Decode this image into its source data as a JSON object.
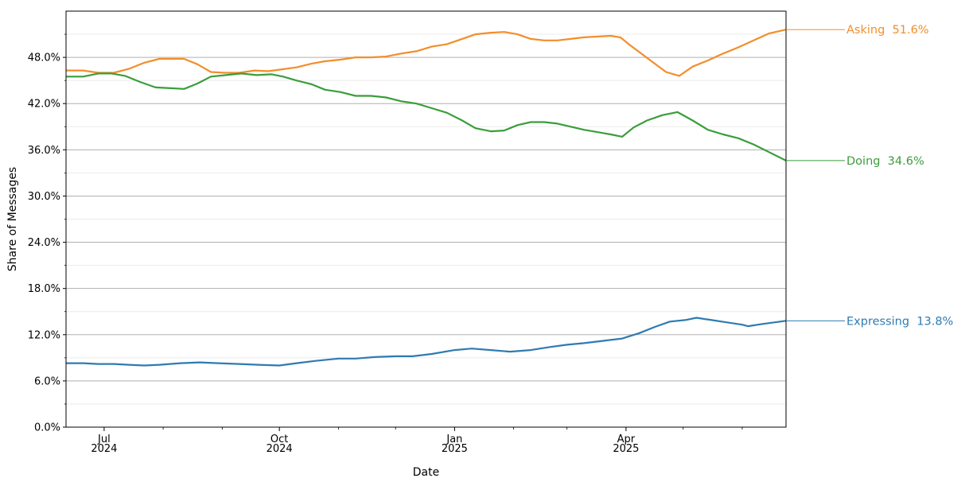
{
  "chart_data": {
    "type": "line",
    "title": "",
    "xlabel": "Date",
    "ylabel": "Share of Messages",
    "y_unit": "%",
    "ylim": [
      0,
      54
    ],
    "y_ticks": [
      {
        "value": 0,
        "label": "0.0%"
      },
      {
        "value": 6,
        "label": "6.0%"
      },
      {
        "value": 12,
        "label": "12.0%"
      },
      {
        "value": 18,
        "label": "18.0%"
      },
      {
        "value": 24,
        "label": "24.0%"
      },
      {
        "value": 30,
        "label": "30.0%"
      },
      {
        "value": 36,
        "label": "36.0%"
      },
      {
        "value": 42,
        "label": "42.0%"
      },
      {
        "value": 48,
        "label": "48.0%"
      }
    ],
    "y_minor_grid": [
      3,
      9,
      15,
      21,
      27,
      33,
      39,
      45,
      51
    ],
    "xlim": [
      "2024-06-11",
      "2025-06-24"
    ],
    "x_major_ticks": [
      {
        "date": "2024-07-01",
        "month": "Jul",
        "year": "2024"
      },
      {
        "date": "2024-10-01",
        "month": "Oct",
        "year": "2024"
      },
      {
        "date": "2025-01-01",
        "month": "Jan",
        "year": "2025"
      },
      {
        "date": "2025-04-01",
        "month": "Apr",
        "year": "2025"
      }
    ],
    "x_minor_ticks": [
      "2024-08-01",
      "2024-09-01",
      "2024-11-01",
      "2024-12-01",
      "2025-02-01",
      "2025-03-01",
      "2025-05-01",
      "2025-06-01"
    ],
    "grid": "horizontal",
    "legend": "none",
    "series": [
      {
        "name": "Asking",
        "end_label": "Asking  51.6%",
        "color": "#f28e2b",
        "points": [
          [
            "2024-06-11",
            46.3
          ],
          [
            "2024-06-20",
            46.3
          ],
          [
            "2024-06-28",
            46.0
          ],
          [
            "2024-07-06",
            46.0
          ],
          [
            "2024-07-14",
            46.5
          ],
          [
            "2024-07-22",
            47.3
          ],
          [
            "2024-07-30",
            47.8
          ],
          [
            "2024-08-05",
            47.8
          ],
          [
            "2024-08-12",
            47.8
          ],
          [
            "2024-08-19",
            47.1
          ],
          [
            "2024-08-26",
            46.1
          ],
          [
            "2024-09-02",
            46.0
          ],
          [
            "2024-09-10",
            46.0
          ],
          [
            "2024-09-18",
            46.3
          ],
          [
            "2024-09-25",
            46.2
          ],
          [
            "2024-10-01",
            46.4
          ],
          [
            "2024-10-10",
            46.7
          ],
          [
            "2024-10-18",
            47.2
          ],
          [
            "2024-10-25",
            47.5
          ],
          [
            "2024-11-02",
            47.7
          ],
          [
            "2024-11-10",
            48.0
          ],
          [
            "2024-11-18",
            48.0
          ],
          [
            "2024-11-26",
            48.1
          ],
          [
            "2024-12-04",
            48.5
          ],
          [
            "2024-12-12",
            48.8
          ],
          [
            "2024-12-20",
            49.4
          ],
          [
            "2024-12-28",
            49.7
          ],
          [
            "2025-01-05",
            50.4
          ],
          [
            "2025-01-12",
            51.0
          ],
          [
            "2025-01-20",
            51.2
          ],
          [
            "2025-01-27",
            51.3
          ],
          [
            "2025-02-03",
            51.0
          ],
          [
            "2025-02-10",
            50.4
          ],
          [
            "2025-02-17",
            50.2
          ],
          [
            "2025-02-24",
            50.2
          ],
          [
            "2025-03-03",
            50.4
          ],
          [
            "2025-03-10",
            50.6
          ],
          [
            "2025-03-17",
            50.7
          ],
          [
            "2025-03-24",
            50.8
          ],
          [
            "2025-03-29",
            50.6
          ],
          [
            "2025-04-03",
            49.6
          ],
          [
            "2025-04-09",
            48.5
          ],
          [
            "2025-04-16",
            47.2
          ],
          [
            "2025-04-22",
            46.1
          ],
          [
            "2025-04-29",
            45.6
          ],
          [
            "2025-05-06",
            46.8
          ],
          [
            "2025-05-14",
            47.6
          ],
          [
            "2025-05-22",
            48.5
          ],
          [
            "2025-05-30",
            49.3
          ],
          [
            "2025-06-07",
            50.2
          ],
          [
            "2025-06-15",
            51.1
          ],
          [
            "2025-06-24",
            51.6
          ]
        ]
      },
      {
        "name": "Doing",
        "end_label": "Doing  34.6%",
        "color": "#3a9e3a",
        "points": [
          [
            "2024-06-11",
            45.5
          ],
          [
            "2024-06-20",
            45.5
          ],
          [
            "2024-06-28",
            45.9
          ],
          [
            "2024-07-05",
            45.9
          ],
          [
            "2024-07-12",
            45.6
          ],
          [
            "2024-07-20",
            44.8
          ],
          [
            "2024-07-28",
            44.1
          ],
          [
            "2024-08-05",
            44.0
          ],
          [
            "2024-08-12",
            43.9
          ],
          [
            "2024-08-19",
            44.6
          ],
          [
            "2024-08-26",
            45.5
          ],
          [
            "2024-09-03",
            45.7
          ],
          [
            "2024-09-11",
            45.9
          ],
          [
            "2024-09-19",
            45.7
          ],
          [
            "2024-09-27",
            45.8
          ],
          [
            "2024-10-03",
            45.5
          ],
          [
            "2024-10-10",
            45.0
          ],
          [
            "2024-10-18",
            44.5
          ],
          [
            "2024-10-25",
            43.8
          ],
          [
            "2024-11-02",
            43.5
          ],
          [
            "2024-11-10",
            43.0
          ],
          [
            "2024-11-18",
            43.0
          ],
          [
            "2024-11-26",
            42.8
          ],
          [
            "2024-12-04",
            42.3
          ],
          [
            "2024-12-12",
            42.0
          ],
          [
            "2024-12-20",
            41.4
          ],
          [
            "2024-12-28",
            40.8
          ],
          [
            "2025-01-05",
            39.8
          ],
          [
            "2025-01-12",
            38.8
          ],
          [
            "2025-01-20",
            38.4
          ],
          [
            "2025-01-27",
            38.5
          ],
          [
            "2025-02-03",
            39.2
          ],
          [
            "2025-02-10",
            39.6
          ],
          [
            "2025-02-17",
            39.6
          ],
          [
            "2025-02-24",
            39.4
          ],
          [
            "2025-03-03",
            39.0
          ],
          [
            "2025-03-10",
            38.6
          ],
          [
            "2025-03-17",
            38.3
          ],
          [
            "2025-03-24",
            38.0
          ],
          [
            "2025-03-30",
            37.7
          ],
          [
            "2025-04-05",
            38.9
          ],
          [
            "2025-04-12",
            39.8
          ],
          [
            "2025-04-20",
            40.5
          ],
          [
            "2025-04-28",
            40.9
          ],
          [
            "2025-05-06",
            39.8
          ],
          [
            "2025-05-14",
            38.6
          ],
          [
            "2025-05-22",
            38.0
          ],
          [
            "2025-05-30",
            37.5
          ],
          [
            "2025-06-07",
            36.7
          ],
          [
            "2025-06-15",
            35.7
          ],
          [
            "2025-06-24",
            34.6
          ]
        ]
      },
      {
        "name": "Expressing",
        "end_label": "Expressing  13.8%",
        "color": "#2f7bb1",
        "points": [
          [
            "2024-06-11",
            8.3
          ],
          [
            "2024-06-20",
            8.3
          ],
          [
            "2024-06-28",
            8.2
          ],
          [
            "2024-07-06",
            8.2
          ],
          [
            "2024-07-14",
            8.1
          ],
          [
            "2024-07-22",
            8.0
          ],
          [
            "2024-07-30",
            8.1
          ],
          [
            "2024-08-10",
            8.3
          ],
          [
            "2024-08-20",
            8.4
          ],
          [
            "2024-08-30",
            8.3
          ],
          [
            "2024-09-10",
            8.2
          ],
          [
            "2024-09-20",
            8.1
          ],
          [
            "2024-10-01",
            8.0
          ],
          [
            "2024-10-10",
            8.3
          ],
          [
            "2024-10-20",
            8.6
          ],
          [
            "2024-11-01",
            8.9
          ],
          [
            "2024-11-10",
            8.9
          ],
          [
            "2024-11-20",
            9.1
          ],
          [
            "2024-12-01",
            9.2
          ],
          [
            "2024-12-10",
            9.2
          ],
          [
            "2024-12-20",
            9.5
          ],
          [
            "2025-01-01",
            10.0
          ],
          [
            "2025-01-10",
            10.2
          ],
          [
            "2025-01-20",
            10.0
          ],
          [
            "2025-01-30",
            9.8
          ],
          [
            "2025-02-10",
            10.0
          ],
          [
            "2025-02-20",
            10.4
          ],
          [
            "2025-03-01",
            10.7
          ],
          [
            "2025-03-10",
            10.9
          ],
          [
            "2025-03-20",
            11.2
          ],
          [
            "2025-03-30",
            11.5
          ],
          [
            "2025-04-08",
            12.2
          ],
          [
            "2025-04-16",
            13.0
          ],
          [
            "2025-04-24",
            13.7
          ],
          [
            "2025-05-02",
            13.9
          ],
          [
            "2025-05-08",
            14.2
          ],
          [
            "2025-05-16",
            13.9
          ],
          [
            "2025-05-24",
            13.6
          ],
          [
            "2025-06-01",
            13.3
          ],
          [
            "2025-06-04",
            13.1
          ],
          [
            "2025-06-12",
            13.4
          ],
          [
            "2025-06-24",
            13.8
          ]
        ]
      }
    ]
  }
}
